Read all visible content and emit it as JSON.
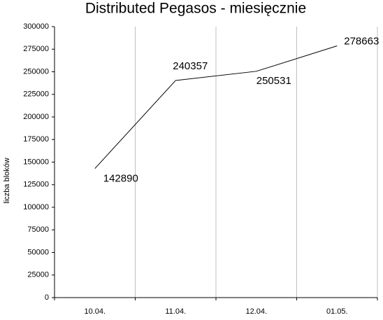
{
  "chart_data": {
    "type": "line",
    "title": "Distributed Pegasos - miesięcznie",
    "y_label": "liczba bloków",
    "categories": [
      "10.04.",
      "11.04.",
      "12.04.",
      "01.05."
    ],
    "values": [
      142890,
      240357,
      250531,
      278663
    ],
    "color": "#000000",
    "ylim": [
      0,
      300000
    ],
    "yticks": [
      0,
      25000,
      50000,
      75000,
      100000,
      125000,
      150000,
      175000,
      200000,
      225000,
      250000,
      275000,
      300000
    ],
    "grid": true
  }
}
